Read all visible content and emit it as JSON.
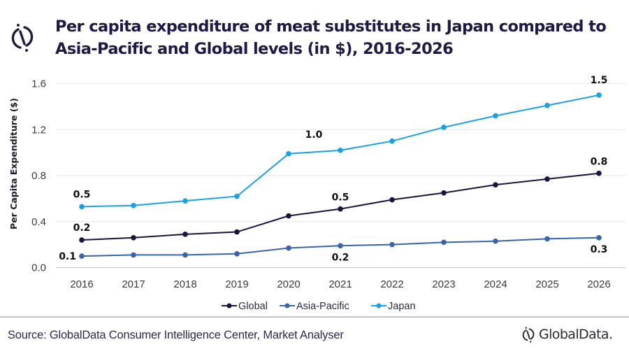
{
  "header": {
    "title_line1": "Per capita expenditure of meat substitutes in Japan compared to",
    "title_line2": "Asia-Pacific and Global levels (in $), 2016-2026",
    "logo_icon": "globaldata-mark-icon"
  },
  "footer": {
    "source": "Source: GlobalData Consumer Intelligence Center, Market Analyser",
    "brand": "GlobalData."
  },
  "colors": {
    "title": "#1e1a45",
    "global": "#1c1440",
    "asia_pacific": "#3a64a8",
    "japan": "#1ba1e2",
    "gridline": "#e6e6e6"
  },
  "chart_data": {
    "type": "line",
    "title": "Per capita expenditure of meat substitutes in Japan compared to Asia-Pacific and Global levels (in $), 2016-2026",
    "xlabel": "",
    "ylabel": "Per Capita Expenditure ($)",
    "x": [
      "2016",
      "2017",
      "2018",
      "2019",
      "2020",
      "2021",
      "2022",
      "2023",
      "2024",
      "2025",
      "2026"
    ],
    "ylim": [
      0,
      1.6
    ],
    "yticks": [
      "0.0",
      "0.4",
      "0.8",
      "1.2",
      "1.6"
    ],
    "ytick_values": [
      0,
      0.4,
      0.8,
      1.2,
      1.6
    ],
    "grid": "horizontal",
    "legend_position": "bottom",
    "series": [
      {
        "name": "Global",
        "color": "#1c1440",
        "values": [
          0.24,
          0.26,
          0.29,
          0.31,
          0.45,
          0.51,
          0.59,
          0.65,
          0.72,
          0.77,
          0.82
        ],
        "data_labels": [
          {
            "index": 0,
            "text": "0.2",
            "position": "above"
          },
          {
            "index": 5,
            "text": "0.5",
            "position": "above"
          },
          {
            "index": 10,
            "text": "0.8",
            "position": "above"
          }
        ]
      },
      {
        "name": "Asia-Pacific",
        "color": "#3a64a8",
        "values": [
          0.1,
          0.11,
          0.11,
          0.12,
          0.17,
          0.19,
          0.2,
          0.22,
          0.23,
          0.25,
          0.26
        ],
        "data_labels": [
          {
            "index": 0,
            "text": "0.1",
            "position": "left"
          },
          {
            "index": 5,
            "text": "0.2",
            "position": "below"
          },
          {
            "index": 10,
            "text": "0.3",
            "position": "below"
          }
        ]
      },
      {
        "name": "Japan",
        "color": "#1ba1e2",
        "values": [
          0.53,
          0.54,
          0.58,
          0.62,
          0.99,
          1.02,
          1.1,
          1.22,
          1.32,
          1.41,
          1.5
        ],
        "data_labels": [
          {
            "index": 0,
            "text": "0.5",
            "position": "above"
          },
          {
            "index": 5,
            "text": "1.0",
            "position": "above-left"
          },
          {
            "index": 10,
            "text": "1.5",
            "position": "above"
          }
        ]
      }
    ]
  }
}
